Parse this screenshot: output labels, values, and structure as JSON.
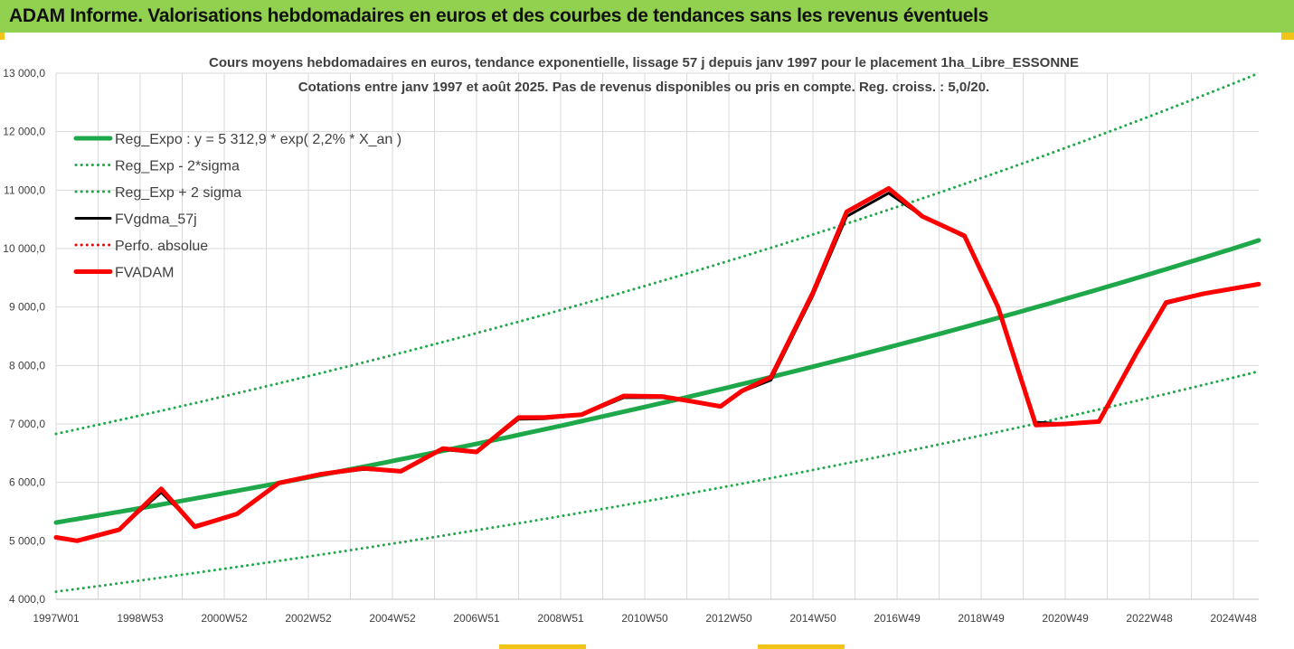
{
  "banner": {
    "title": "ADAM Informe. Valorisations hebdomadaires en euros et des courbes de tendances sans les revenus éventuels"
  },
  "colors": {
    "banner_bg": "#92d050",
    "trend": "#1fa84a",
    "band": "#1fa84a",
    "fvgdma": "#000000",
    "perfo": "#ff0000",
    "fvadam": "#ff0000",
    "grid": "#d9d9d9"
  },
  "chart_data": {
    "type": "line",
    "title": "Cours moyens hebdomadaires en euros, tendance exponentielle, lissage 57 j depuis janv 1997  pour le placement 1ha_Libre_ESSONNE",
    "subtitle": "Cotations entre janv 1997 et août 2025.  Pas de revenus disponibles ou pris en compte. Reg. croiss. : 5,0/20.",
    "xlabel": "",
    "ylabel": "",
    "ylim": [
      4000,
      13000
    ],
    "xlim": [
      1997.0,
      2025.6
    ],
    "grid": true,
    "legend_position": "top-left",
    "y_ticks": [
      "4 000,0",
      "5 000,0",
      "6 000,0",
      "7 000,0",
      "8 000,0",
      "9 000,0",
      "10 000,0",
      "11 000,0",
      "12 000,0",
      "13 000,0"
    ],
    "y_tick_values": [
      4000,
      5000,
      6000,
      7000,
      8000,
      9000,
      10000,
      11000,
      12000,
      13000
    ],
    "x_ticks": [
      {
        "label": "1997W01",
        "x": 1997.0
      },
      {
        "label": "1998W53",
        "x": 1999.0
      },
      {
        "label": "2000W52",
        "x": 2001.0
      },
      {
        "label": "2002W52",
        "x": 2003.0
      },
      {
        "label": "2004W52",
        "x": 2005.0
      },
      {
        "label": "2006W51",
        "x": 2007.0
      },
      {
        "label": "2008W51",
        "x": 2009.0
      },
      {
        "label": "2010W50",
        "x": 2011.0
      },
      {
        "label": "2012W50",
        "x": 2013.0
      },
      {
        "label": "2014W50",
        "x": 2015.0
      },
      {
        "label": "2016W49",
        "x": 2017.0
      },
      {
        "label": "2018W49",
        "x": 2019.0
      },
      {
        "label": "2020W49",
        "x": 2021.0
      },
      {
        "label": "2022W48",
        "x": 2023.0
      },
      {
        "label": "2024W48",
        "x": 2025.0
      }
    ],
    "series": [
      {
        "name": "Reg_Expo : y = 5 312,9 * exp( 2,2% *  X_an )",
        "style": "solid-thick",
        "color": "#1fa84a",
        "x": [
          1997.0,
          2025.6
        ],
        "y": [
          5313,
          10140
        ],
        "curve": "exponential"
      },
      {
        "name": "Reg_Exp - 2*sigma",
        "style": "dotted",
        "color": "#1fa84a",
        "x": [
          1997.0,
          2025.6
        ],
        "y": [
          4130,
          7900
        ],
        "curve": "exponential"
      },
      {
        "name": "Reg_Exp + 2 sigma",
        "style": "dotted",
        "color": "#1fa84a",
        "x": [
          1997.0,
          2025.6
        ],
        "y": [
          6830,
          13000
        ],
        "curve": "exponential"
      },
      {
        "name": "FVgdma_57j",
        "style": "solid",
        "color": "#000000",
        "x": [
          1997.0,
          1997.5,
          1998.5,
          1999.5,
          2000.3,
          2001.3,
          2002.3,
          2003.3,
          2004.3,
          2005.2,
          2006.2,
          2007.0,
          2008.0,
          2008.6,
          2009.5,
          2010.5,
          2011.4,
          2012.0,
          2012.8,
          2013.3,
          2014.0,
          2015.0,
          2015.8,
          2016.8,
          2017.6,
          2018.6,
          2019.4,
          2020.3,
          2021.0,
          2021.8,
          2022.7,
          2023.4,
          2024.3,
          2025.6
        ],
        "y": [
          5060,
          5010,
          5200,
          5830,
          5260,
          5450,
          5980,
          6130,
          6220,
          6200,
          6560,
          6510,
          7080,
          7090,
          7150,
          7450,
          7450,
          7400,
          7300,
          7550,
          7750,
          9200,
          10550,
          10950,
          10550,
          10200,
          9000,
          7030,
          7000,
          7050,
          8200,
          9060,
          9220,
          9380
        ]
      },
      {
        "name": "Perfo. absolue",
        "style": "dotted",
        "color": "#ff0000",
        "x": [],
        "y": []
      },
      {
        "name": "FVADAM",
        "style": "solid-thick",
        "color": "#ff0000",
        "x": [
          1997.0,
          1997.5,
          1998.5,
          1999.5,
          2000.3,
          2001.3,
          2002.3,
          2003.3,
          2004.3,
          2005.2,
          2006.2,
          2007.0,
          2008.0,
          2008.6,
          2009.5,
          2010.5,
          2011.4,
          2012.0,
          2012.8,
          2013.3,
          2014.0,
          2015.0,
          2015.8,
          2016.8,
          2017.6,
          2018.6,
          2019.4,
          2020.3,
          2021.0,
          2021.8,
          2022.7,
          2023.4,
          2024.3,
          2025.6
        ],
        "y": [
          5060,
          5000,
          5190,
          5890,
          5240,
          5460,
          5990,
          6140,
          6240,
          6190,
          6580,
          6520,
          7110,
          7110,
          7160,
          7480,
          7470,
          7400,
          7300,
          7560,
          7800,
          9250,
          10630,
          11030,
          10550,
          10220,
          9000,
          6980,
          7000,
          7040,
          8220,
          9080,
          9230,
          9390
        ]
      }
    ]
  }
}
